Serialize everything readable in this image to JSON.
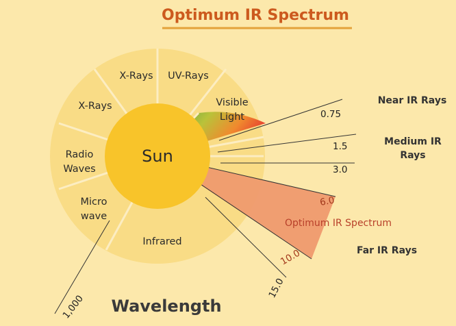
{
  "title": "Optimum IR Spectrum",
  "center_label": "Sun",
  "segments": {
    "uv": "UV-Rays",
    "xrays_top": "X-Rays",
    "xrays_left": "X-Rays",
    "radio_1": "Radio",
    "radio_2": "Waves",
    "micro_1": "Micro",
    "micro_2": "wave",
    "infrared": "Infrared",
    "visible_1": "Visible",
    "visible_2": "Light"
  },
  "wavelengths": {
    "w075": "0.75",
    "w15": "1.5",
    "w30": "3.0",
    "w60": "6.0",
    "w100": "10.0",
    "w150": "15.0",
    "w1000": "1,000"
  },
  "ray_labels": {
    "near": "Near IR Rays",
    "medium_1": "Medium IR",
    "medium_2": "Rays",
    "far": "Far IR Rays"
  },
  "optimum_label": "Optimum IR Spectrum",
  "axis_label": "Wavelength",
  "colors": {
    "background": "#fce8ab",
    "ring": "#f9dc86",
    "sun": "#f8c42a",
    "optimum": "#ef9a6e",
    "title": "#cc5a1e"
  }
}
